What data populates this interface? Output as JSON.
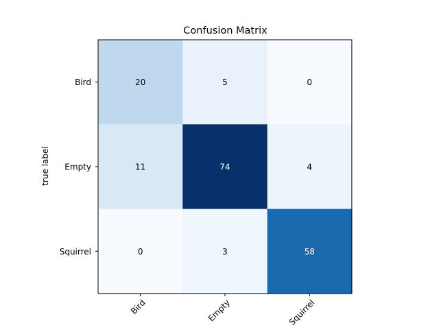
{
  "chart_data": {
    "type": "heatmap",
    "title": "Confusion Matrix",
    "xlabel": "",
    "ylabel": "true label",
    "x_categories": [
      "Bird",
      "Empty",
      "Squirrel"
    ],
    "y_categories": [
      "Bird",
      "Empty",
      "Squirrel"
    ],
    "values": [
      [
        20,
        5,
        0
      ],
      [
        11,
        74,
        4
      ],
      [
        0,
        3,
        58
      ]
    ],
    "colormap": "Blues",
    "color_range": [
      0,
      74
    ],
    "x_tick_rotation": 45,
    "grid": false,
    "legend": "none"
  }
}
